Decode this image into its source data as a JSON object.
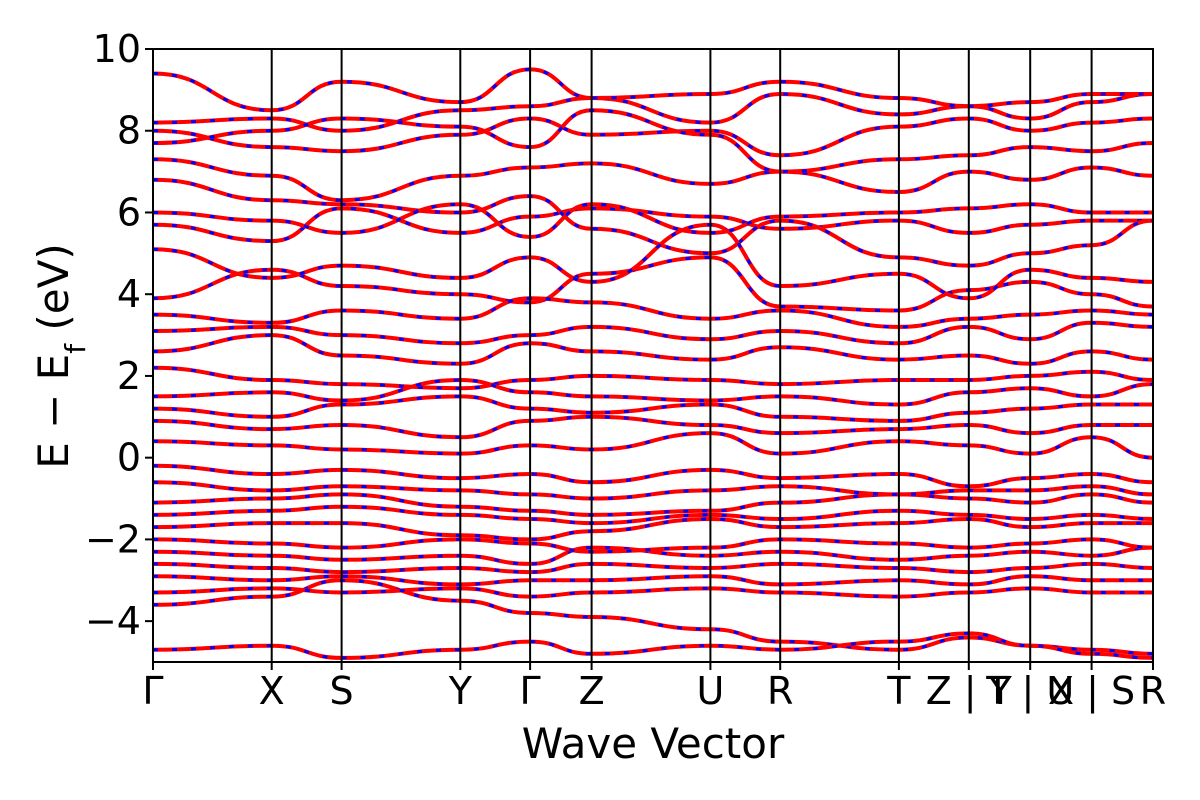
{
  "chart_data": {
    "type": "line",
    "xlabel": "Wave Vector",
    "ylabel_main": "E − E",
    "ylabel_sub": "f",
    "ylabel_unit": " (eV)",
    "ylim": [
      -5,
      10
    ],
    "y_ticks": [
      {
        "value": 10,
        "label": "10"
      },
      {
        "value": 8,
        "label": "8"
      },
      {
        "value": 6,
        "label": "6"
      },
      {
        "value": 4,
        "label": "4"
      },
      {
        "value": 2,
        "label": "2"
      },
      {
        "value": 0,
        "label": "0"
      },
      {
        "value": -2,
        "label": "−2"
      },
      {
        "value": -4,
        "label": "−4"
      }
    ],
    "x_ticks": [
      {
        "value": 0.0,
        "label": "Γ"
      },
      {
        "value": 0.1187,
        "label": "X"
      },
      {
        "value": 0.1886,
        "label": "S"
      },
      {
        "value": 0.3073,
        "label": "Y"
      },
      {
        "value": 0.3771,
        "label": "Γ"
      },
      {
        "value": 0.4386,
        "label": "Z"
      },
      {
        "value": 0.5574,
        "label": "U"
      },
      {
        "value": 0.6272,
        "label": "R"
      },
      {
        "value": 0.7459,
        "label": "T"
      },
      {
        "value": 0.8158,
        "label": "Z | Y"
      },
      {
        "value": 0.8772,
        "label": "T | U"
      },
      {
        "value": 0.9386,
        "label": "X | S"
      },
      {
        "value": 1.0,
        "label": "R"
      }
    ],
    "grid": false,
    "legend": "none",
    "series": [
      {
        "color": "#ff0000",
        "style": "solid"
      },
      {
        "color": "#0000ff",
        "style": "dashed"
      }
    ],
    "bands": [
      {
        "y": [
          8.2,
          8.3,
          8.0,
          8.5,
          8.6,
          8.8,
          8.2,
          8.9,
          8.4,
          8.6,
          8.3,
          8.7,
          8.9
        ]
      },
      {
        "y": [
          7.3,
          6.9,
          6.3,
          6.9,
          7.1,
          7.2,
          6.7,
          7.0,
          6.5,
          7.0,
          6.8,
          7.1,
          6.9
        ]
      },
      {
        "y": [
          5.7,
          5.3,
          6.1,
          5.5,
          5.9,
          6.1,
          5.9,
          5.6,
          5.8,
          5.5,
          5.7,
          5.8,
          5.8
        ]
      },
      {
        "y": [
          3.9,
          4.6,
          4.2,
          4.0,
          3.8,
          4.5,
          4.9,
          3.7,
          3.6,
          4.1,
          4.3,
          4.0,
          3.7
        ]
      },
      {
        "y": [
          3.1,
          3.2,
          3.0,
          2.8,
          3.0,
          3.2,
          2.9,
          3.1,
          2.8,
          3.2,
          2.9,
          3.3,
          3.2
        ]
      },
      {
        "y": [
          2.2,
          1.9,
          1.8,
          1.7,
          1.9,
          2.0,
          1.9,
          1.8,
          1.9,
          1.9,
          2.0,
          2.1,
          1.9
        ]
      },
      {
        "y": [
          1.2,
          1.0,
          1.3,
          1.5,
          1.2,
          1.1,
          1.3,
          1.0,
          0.9,
          1.1,
          1.2,
          1.3,
          1.3
        ]
      },
      {
        "y": [
          0.4,
          0.3,
          0.2,
          0.1,
          0.3,
          0.2,
          0.6,
          0.1,
          0.4,
          0.3,
          0.1,
          0.5,
          0.0
        ]
      },
      {
        "y": [
          -0.2,
          -0.4,
          -0.3,
          -0.5,
          -0.4,
          -0.6,
          -0.3,
          -0.5,
          -0.4,
          -0.7,
          -0.5,
          -0.4,
          -0.6
        ]
      },
      {
        "y": [
          -1.1,
          -1.0,
          -0.9,
          -1.2,
          -1.3,
          -1.4,
          -1.3,
          -1.1,
          -0.9,
          -1.0,
          -1.1,
          -0.9,
          -1.1
        ]
      },
      {
        "y": [
          -1.7,
          -1.6,
          -1.6,
          -1.9,
          -2.0,
          -1.8,
          -1.5,
          -1.7,
          -1.6,
          -1.5,
          -1.7,
          -1.6,
          -1.6
        ]
      },
      {
        "y": [
          -2.3,
          -2.4,
          -2.5,
          -2.4,
          -2.6,
          -2.2,
          -2.4,
          -2.3,
          -2.5,
          -2.4,
          -2.3,
          -2.4,
          -2.2
        ]
      },
      {
        "y": [
          -2.9,
          -3.0,
          -2.9,
          -3.1,
          -3.0,
          -3.0,
          -2.9,
          -3.1,
          -3.0,
          -3.1,
          -2.9,
          -3.0,
          -3.0
        ]
      },
      {
        "y": [
          -3.6,
          -3.4,
          -3.0,
          -3.5,
          -3.8,
          -3.9,
          -4.2,
          -4.5,
          -4.7,
          -4.4,
          -4.6,
          -4.7,
          -4.8
        ]
      },
      {
        "y": [
          -4.7,
          -4.6,
          -4.9,
          -4.7,
          -4.5,
          -4.8,
          -4.6,
          -4.7,
          -4.5,
          -4.3,
          -4.6,
          -4.8,
          -4.9
        ]
      },
      {
        "y": [
          9.4,
          8.5,
          9.2,
          8.7,
          9.5,
          8.8,
          8.9,
          9.2,
          8.8,
          8.6,
          8.7,
          8.9,
          8.9
        ]
      },
      {
        "y": [
          8.0,
          7.6,
          7.5,
          7.9,
          8.3,
          7.9,
          8.0,
          7.4,
          8.1,
          8.3,
          8.0,
          8.2,
          8.3
        ]
      },
      {
        "y": [
          6.8,
          6.3,
          6.2,
          6.0,
          6.4,
          5.6,
          5.0,
          5.8,
          4.9,
          4.7,
          5.0,
          5.2,
          5.8
        ]
      },
      {
        "y": [
          5.1,
          4.4,
          4.7,
          4.4,
          4.9,
          4.3,
          5.7,
          4.2,
          4.5,
          3.9,
          4.6,
          4.4,
          4.3
        ]
      },
      {
        "y": [
          2.6,
          3.0,
          2.5,
          2.3,
          2.8,
          2.6,
          2.4,
          2.7,
          2.4,
          2.5,
          2.3,
          2.6,
          2.4
        ]
      }
    ],
    "extra_bands": [
      {
        "y": [
          1.5,
          1.6,
          1.4,
          1.9,
          1.6,
          1.5,
          1.4,
          1.5,
          1.3,
          1.6,
          1.7,
          1.5,
          1.8
        ]
      },
      {
        "y": [
          0.9,
          0.7,
          0.8,
          0.5,
          0.9,
          1.0,
          0.8,
          0.6,
          0.7,
          0.8,
          0.6,
          0.8,
          0.8
        ]
      },
      {
        "y": [
          -0.6,
          -0.8,
          -0.7,
          -0.8,
          -0.9,
          -1.0,
          -0.8,
          -0.7,
          -0.9,
          -0.8,
          -0.8,
          -0.7,
          -0.9
        ]
      },
      {
        "y": [
          -1.4,
          -1.3,
          -1.2,
          -1.4,
          -1.5,
          -1.6,
          -1.4,
          -1.5,
          -1.3,
          -1.4,
          -1.5,
          -1.4,
          -1.5
        ]
      },
      {
        "y": [
          -2.0,
          -2.1,
          -2.2,
          -2.0,
          -2.1,
          -2.3,
          -2.2,
          -2.0,
          -2.1,
          -2.2,
          -2.1,
          -2.0,
          -2.2
        ]
      },
      {
        "y": [
          -2.6,
          -2.7,
          -2.8,
          -2.7,
          -2.8,
          -2.6,
          -2.7,
          -2.6,
          -2.7,
          -2.8,
          -2.7,
          -2.6,
          -2.7
        ]
      },
      {
        "y": [
          -3.3,
          -3.2,
          -3.3,
          -3.2,
          -3.4,
          -3.3,
          -3.2,
          -3.3,
          -3.4,
          -3.3,
          -3.2,
          -3.3,
          -3.3
        ]
      },
      {
        "y": [
          7.7,
          8.0,
          8.3,
          8.1,
          7.6,
          8.5,
          7.9,
          7.0,
          7.3,
          7.4,
          7.6,
          7.5,
          7.7
        ]
      },
      {
        "y": [
          6.0,
          5.8,
          5.5,
          6.2,
          5.4,
          6.2,
          5.5,
          5.9,
          6.0,
          6.1,
          6.2,
          6.0,
          6.0
        ]
      },
      {
        "y": [
          3.5,
          3.3,
          3.6,
          3.4,
          3.9,
          3.8,
          3.4,
          3.6,
          3.2,
          3.4,
          3.5,
          3.6,
          3.5
        ]
      }
    ]
  }
}
